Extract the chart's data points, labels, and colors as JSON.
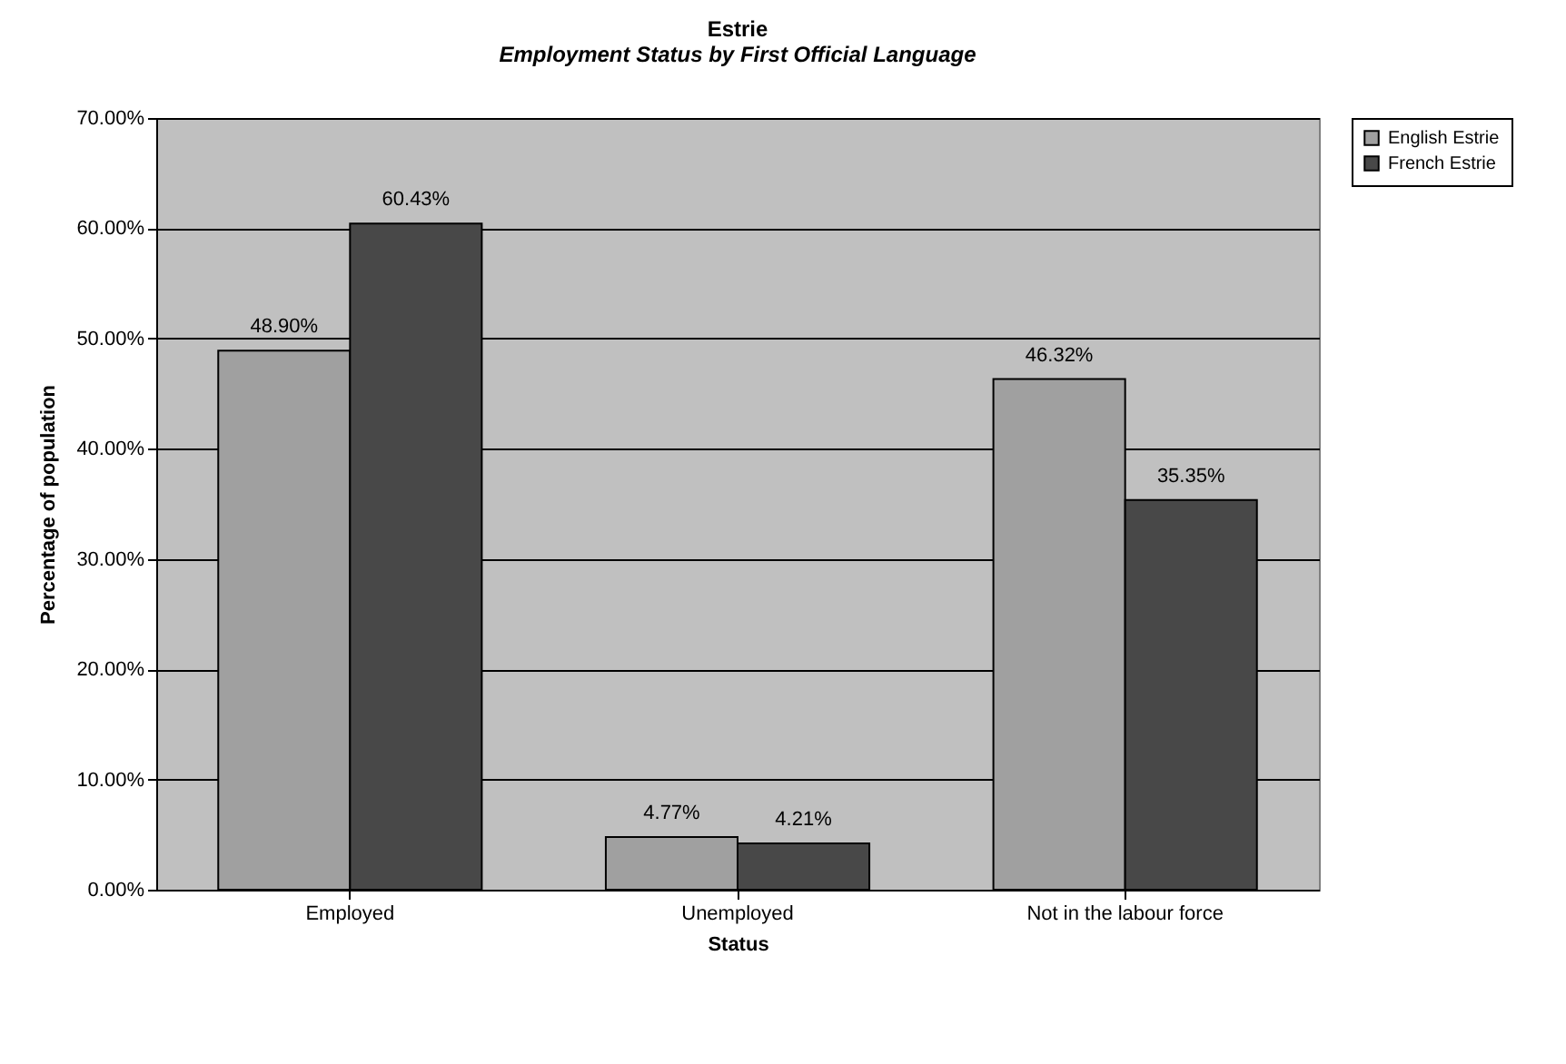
{
  "chart_data": {
    "type": "bar",
    "title": "Estrie",
    "subtitle": "Employment Status by First Official Language",
    "xlabel": "Status",
    "ylabel": "Percentage of population",
    "categories": [
      "Employed",
      "Unemployed",
      "Not in the labour force"
    ],
    "series": [
      {
        "name": "English Estrie",
        "color": "#a0a0a0",
        "values": [
          48.9,
          4.77,
          46.32
        ],
        "value_labels": [
          "48.90%",
          "4.77%",
          "46.32%"
        ]
      },
      {
        "name": "French Estrie",
        "color": "#484848",
        "values": [
          60.43,
          4.21,
          35.35
        ],
        "value_labels": [
          "60.43%",
          "4.21%",
          "35.35%"
        ]
      }
    ],
    "ylim": [
      0,
      70
    ],
    "yticks": [
      {
        "value": 0,
        "label": "0.00%"
      },
      {
        "value": 10,
        "label": "10.00%"
      },
      {
        "value": 20,
        "label": "20.00%"
      },
      {
        "value": 30,
        "label": "30.00%"
      },
      {
        "value": 40,
        "label": "40.00%"
      },
      {
        "value": 50,
        "label": "50.00%"
      },
      {
        "value": 60,
        "label": "60.00%"
      },
      {
        "value": 70,
        "label": "70.00%"
      }
    ],
    "grid": "y",
    "legend": "right"
  }
}
